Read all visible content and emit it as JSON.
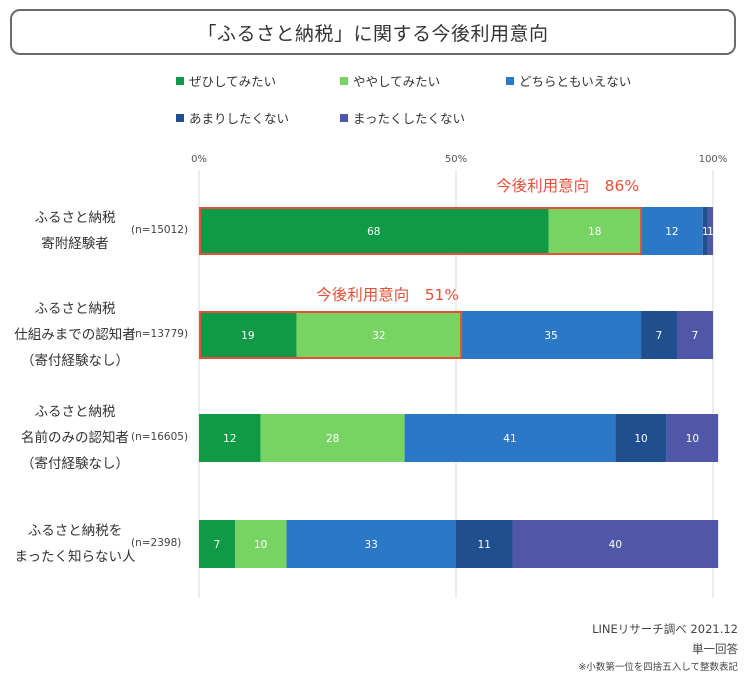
{
  "chart_data": {
    "type": "bar",
    "orientation": "horizontal",
    "stacked": true,
    "title": "「ふるさと納税」に関する今後利用意向",
    "xlim": [
      0,
      100
    ],
    "x_ticks": [
      "0%",
      "50%",
      "100%"
    ],
    "categories": [
      {
        "lines": [
          "ふるさと納税",
          "寄附経験者"
        ],
        "n": "(n=15012)"
      },
      {
        "lines": [
          "ふるさと納税",
          "仕組みまでの認知者",
          "（寄付経験なし）"
        ],
        "n": "(n=13779)"
      },
      {
        "lines": [
          "ふるさと納税",
          "名前のみの認知者",
          "（寄付経験なし）"
        ],
        "n": "(n=16605)"
      },
      {
        "lines": [
          "ふるさと納税を",
          "まったく知らない人"
        ],
        "n": "(n=2398)"
      }
    ],
    "series": [
      {
        "name": "ぜひしてみたい",
        "color": "#109a45",
        "values": [
          68,
          19,
          12,
          7
        ]
      },
      {
        "name": "ややしてみたい",
        "color": "#77d463",
        "values": [
          18,
          32,
          28,
          10
        ]
      },
      {
        "name": "どちらともいえない",
        "color": "#2b78c6",
        "values": [
          12,
          35,
          41,
          33
        ]
      },
      {
        "name": "あまりしたくない",
        "color": "#1f4f8f",
        "values": [
          1,
          7,
          10,
          11
        ]
      },
      {
        "name": "まったくしたくない",
        "color": "#5157a8",
        "values": [
          1,
          7,
          10,
          40
        ]
      }
    ],
    "annotations": [
      {
        "category_index": 0,
        "text": "今後利用意向　86%",
        "total": 86
      },
      {
        "category_index": 1,
        "text": "今後利用意向　51%",
        "total": 51
      }
    ],
    "grid": true,
    "legend": "top"
  },
  "footer": {
    "source": "LINEリサーチ調べ 2021.12",
    "answer_type": "単一回答",
    "note": "※小数第一位を四捨五入して整数表記"
  }
}
